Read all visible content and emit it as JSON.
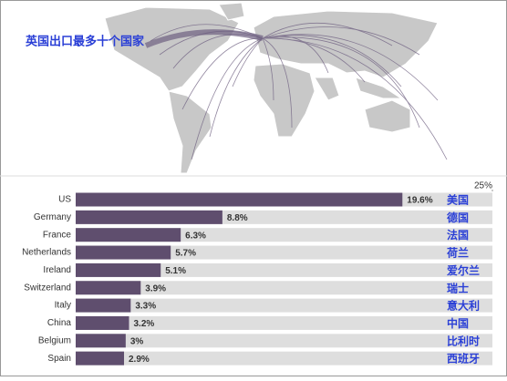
{
  "chart_data": {
    "type": "bar",
    "orientation": "horizontal",
    "title": "英国出口最多十个国家",
    "categories": [
      "US",
      "Germany",
      "France",
      "Netherlands",
      "Ireland",
      "Switzerland",
      "Italy",
      "China",
      "Belgium",
      "Spain"
    ],
    "category_translations": [
      "美国",
      "德国",
      "法国",
      "荷兰",
      "爱尔兰",
      "瑞士",
      "意大利",
      "中国",
      "比利时",
      "西班牙"
    ],
    "values": [
      19.6,
      8.8,
      6.3,
      5.7,
      5.1,
      3.9,
      3.3,
      3.2,
      3,
      2.9
    ],
    "value_labels": [
      "19.6%",
      "8.8%",
      "6.3%",
      "5.7%",
      "5.1%",
      "3.9%",
      "3.3%",
      "3.2%",
      "3%",
      "2.9%"
    ],
    "color": "#5f4e6e",
    "track_color": "#dedede",
    "xlim": [
      0,
      25
    ],
    "xticks": [
      {
        "value": 25,
        "label": "25%"
      }
    ]
  }
}
